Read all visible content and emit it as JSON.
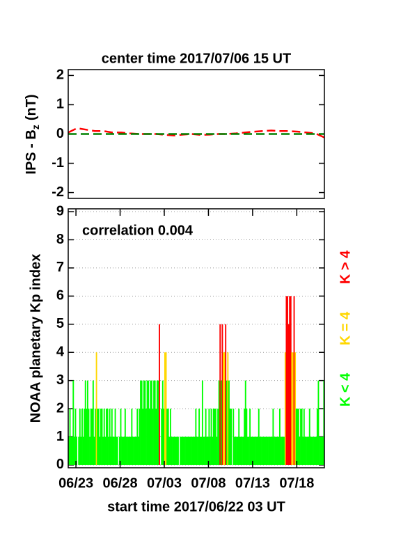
{
  "chart_data": [
    {
      "type": "line",
      "title": "center time 2017/07/06 15 UT",
      "ylabel_parts": [
        "IPS - B",
        "z",
        "(nT)"
      ],
      "xlim": [
        0,
        29
      ],
      "ylim": [
        -2.2,
        2.2
      ],
      "yticks": [
        -2,
        -1,
        0,
        1,
        2
      ],
      "series": [
        {
          "color": "#ff0000",
          "x": [
            0,
            1,
            2,
            3,
            4,
            5,
            6,
            7,
            8,
            9,
            10,
            11,
            12,
            13,
            14,
            15,
            16,
            17,
            18,
            19,
            20,
            21,
            22,
            23,
            24,
            25,
            26,
            27,
            28,
            29
          ],
          "values": [
            0.05,
            0.2,
            0.15,
            0.1,
            0.1,
            0.05,
            0.05,
            0.02,
            0,
            0,
            0,
            -0.03,
            -0.05,
            -0.02,
            0,
            -0.03,
            -0.02,
            0,
            0,
            0.02,
            0.05,
            0.08,
            0.1,
            0.12,
            0.1,
            0.1,
            0.08,
            0.05,
            0.02,
            -0.12
          ]
        },
        {
          "color": "#008000",
          "x": [
            0,
            29
          ],
          "values": [
            0,
            0
          ]
        }
      ]
    },
    {
      "type": "bar",
      "annotation": "correlation 0.004",
      "xlabel": "start time 2017/06/22 03 UT",
      "ylabel": "NOAA planetary Kp index",
      "xlim": [
        0,
        29
      ],
      "ylim": [
        -0.1,
        9.1
      ],
      "yticks": [
        0,
        1,
        2,
        3,
        4,
        5,
        6,
        7,
        8,
        9
      ],
      "grid": true,
      "xticks": [
        {
          "value": 0.875,
          "label": "06/23"
        },
        {
          "value": 5.875,
          "label": "06/28"
        },
        {
          "value": 10.875,
          "label": "07/03"
        },
        {
          "value": 15.875,
          "label": "07/08"
        },
        {
          "value": 20.875,
          "label": "07/13"
        },
        {
          "value": 25.875,
          "label": "07/18"
        }
      ],
      "threshold": 4,
      "legend": [
        {
          "label": "K < 4",
          "color": "#00ff00"
        },
        {
          "label": "K = 4",
          "color": "#ffd700"
        },
        {
          "label": "K > 4",
          "color": "#ff0000"
        }
      ],
      "x": [
        0,
        0.125,
        0.25,
        0.375,
        0.5,
        0.625,
        0.75,
        0.875,
        1,
        1.125,
        1.25,
        1.375,
        1.5,
        1.625,
        1.75,
        1.875,
        2,
        2.125,
        2.25,
        2.375,
        2.5,
        2.625,
        2.75,
        2.875,
        3,
        3.125,
        3.25,
        3.375,
        3.5,
        3.625,
        3.75,
        3.875,
        4,
        4.125,
        4.25,
        4.375,
        4.5,
        4.625,
        4.75,
        4.875,
        5,
        5.125,
        5.25,
        5.375,
        5.5,
        5.625,
        5.75,
        5.875,
        6,
        6.125,
        6.25,
        6.375,
        6.5,
        6.625,
        6.75,
        6.875,
        7,
        7.125,
        7.25,
        7.375,
        7.5,
        7.625,
        7.75,
        7.875,
        8,
        8.125,
        8.25,
        8.375,
        8.5,
        8.625,
        8.75,
        8.875,
        9,
        9.125,
        9.25,
        9.375,
        9.5,
        9.625,
        9.75,
        9.875,
        10,
        10.125,
        10.25,
        10.375,
        10.5,
        10.625,
        10.75,
        10.875,
        11,
        11.125,
        11.25,
        11.375,
        11.5,
        11.625,
        11.75,
        11.875,
        12,
        12.125,
        12.25,
        12.375,
        12.5,
        12.625,
        12.75,
        12.875,
        13,
        13.125,
        13.25,
        13.375,
        13.5,
        13.625,
        13.75,
        13.875,
        14,
        14.125,
        14.25,
        14.375,
        14.5,
        14.625,
        14.75,
        14.875,
        15,
        15.125,
        15.25,
        15.375,
        15.5,
        15.625,
        15.75,
        15.875,
        16,
        16.125,
        16.25,
        16.375,
        16.5,
        16.625,
        16.75,
        16.875,
        17,
        17.125,
        17.25,
        17.375,
        17.5,
        17.625,
        17.75,
        17.875,
        18,
        18.125,
        18.25,
        18.375,
        18.5,
        18.625,
        18.75,
        18.875,
        19,
        19.125,
        19.25,
        19.375,
        19.5,
        19.625,
        19.75,
        19.875,
        20,
        20.125,
        20.25,
        20.375,
        20.5,
        20.625,
        20.75,
        20.875,
        21,
        21.125,
        21.25,
        21.375,
        21.5,
        21.625,
        21.75,
        21.875,
        22,
        22.125,
        22.25,
        22.375,
        22.5,
        22.625,
        22.75,
        22.875,
        23,
        23.125,
        23.25,
        23.375,
        23.5,
        23.625,
        23.75,
        23.875,
        24,
        24.125,
        24.25,
        24.375,
        24.5,
        24.625,
        24.75,
        24.875,
        25,
        25.125,
        25.25,
        25.375,
        25.5,
        25.625,
        25.75,
        25.875,
        26,
        26.125,
        26.25,
        26.375,
        26.5,
        26.625,
        26.75,
        26.875,
        27,
        27.125,
        27.25,
        27.375,
        27.5,
        27.625,
        27.75,
        27.875,
        28,
        28.125,
        28.25,
        28.375,
        28.5,
        28.625,
        28.75,
        28.875
      ],
      "values": [
        1,
        2,
        1,
        1,
        3,
        1,
        2,
        1,
        0,
        1,
        2,
        1,
        2,
        1,
        2,
        3,
        2,
        3,
        2,
        1,
        2,
        2,
        3,
        1,
        2,
        4,
        2,
        2,
        1,
        2,
        2,
        1,
        2,
        1,
        2,
        2,
        1,
        2,
        1,
        2,
        1,
        1,
        2,
        1,
        1,
        0,
        1,
        2,
        1,
        1,
        1,
        2,
        1,
        1,
        1,
        1,
        1,
        2,
        1,
        1,
        1,
        1,
        2,
        1,
        2,
        3,
        3,
        2,
        3,
        3,
        2,
        3,
        3,
        2,
        3,
        3,
        2,
        3,
        3,
        2,
        3,
        3,
        5,
        0,
        2,
        3,
        2,
        4,
        4,
        2,
        2,
        1,
        2,
        1,
        1,
        1,
        1,
        1,
        1,
        1,
        0,
        1,
        1,
        1,
        1,
        1,
        1,
        1,
        1,
        1,
        1,
        1,
        1,
        1,
        1,
        2,
        1,
        1,
        2,
        1,
        1,
        3,
        1,
        1,
        2,
        1,
        1,
        2,
        1,
        2,
        1,
        2,
        2,
        2,
        1,
        2,
        3,
        5,
        3,
        5,
        4,
        4,
        5,
        3,
        4,
        3,
        2,
        2,
        0,
        2,
        1,
        1,
        1,
        1,
        2,
        1,
        1,
        1,
        1,
        2,
        3,
        2,
        1,
        1,
        2,
        1,
        1,
        1,
        1,
        1,
        1,
        1,
        2,
        1,
        1,
        1,
        1,
        1,
        1,
        1,
        1,
        1,
        1,
        1,
        1,
        2,
        1,
        1,
        1,
        1,
        1,
        2,
        1,
        1,
        1,
        1,
        4,
        6,
        6,
        5,
        6,
        6,
        4,
        4,
        6,
        4,
        2,
        2,
        2,
        1,
        2,
        2,
        1,
        2,
        1,
        1,
        1,
        1,
        2,
        1,
        1,
        1,
        1,
        1,
        1,
        2,
        3,
        1,
        1,
        1,
        1,
        3
      ]
    }
  ]
}
